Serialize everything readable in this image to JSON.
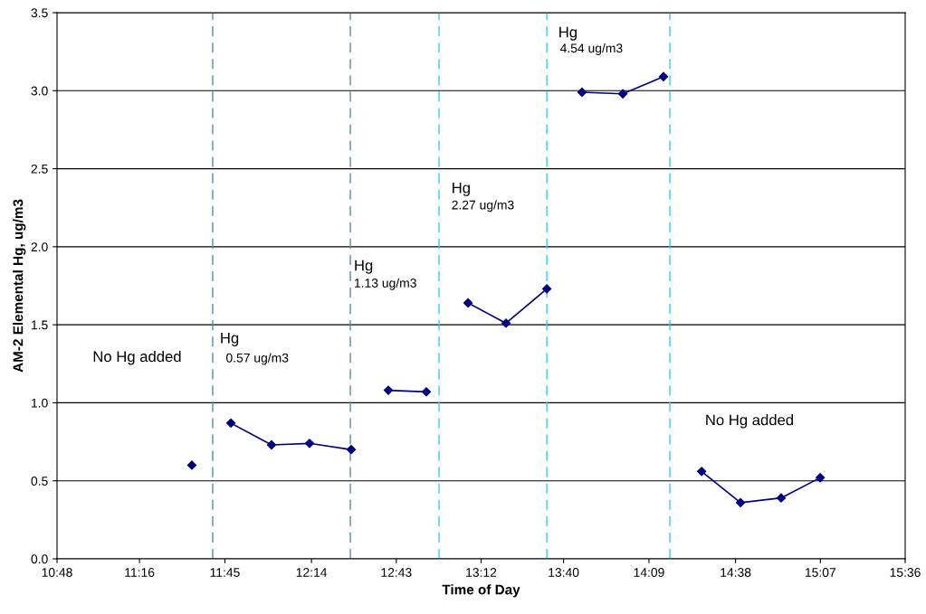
{
  "chart_data": {
    "type": "line",
    "xlabel": "Time of Day",
    "ylabel": "AM-2 Elemental Hg, ug/m3",
    "series": [
      {
        "color": "#00007f",
        "x": [
          11.563
        ],
        "values": [
          0.6
        ]
      },
      {
        "color": "#00007f",
        "x": [
          11.784,
          12.014,
          12.229,
          12.465
        ],
        "values": [
          0.87,
          0.73,
          0.74,
          0.7
        ]
      },
      {
        "color": "#00007f",
        "x": [
          12.675,
          12.89
        ],
        "values": [
          1.08,
          1.07
        ]
      },
      {
        "color": "#00007f",
        "x": [
          13.126,
          13.341,
          13.572
        ],
        "values": [
          1.64,
          1.51,
          1.73
        ]
      },
      {
        "color": "#00007f",
        "x": [
          13.771,
          14.002,
          14.232
        ],
        "values": [
          2.99,
          2.98,
          3.09
        ]
      },
      {
        "color": "#00007f",
        "x": [
          14.448,
          14.668,
          14.898,
          15.119
        ],
        "values": [
          0.56,
          0.36,
          0.39,
          0.52
        ]
      }
    ],
    "xlim": [
      10.8,
      15.6
    ],
    "xticks": [
      {
        "value": 10.8,
        "label": "10:48"
      },
      {
        "value": 11.2667,
        "label": "11:16"
      },
      {
        "value": 11.75,
        "label": "11:45"
      },
      {
        "value": 12.24,
        "label": "12:14"
      },
      {
        "value": 12.72,
        "label": "12:43"
      },
      {
        "value": 13.2,
        "label": "13:12"
      },
      {
        "value": 13.6667,
        "label": "13:40"
      },
      {
        "value": 14.15,
        "label": "14:09"
      },
      {
        "value": 14.64,
        "label": "14:38"
      },
      {
        "value": 15.12,
        "label": "15:07"
      },
      {
        "value": 15.6,
        "label": "15:36"
      }
    ],
    "ylim": [
      0,
      3.5
    ],
    "yticks": [
      {
        "value": 0,
        "label": "0.0"
      },
      {
        "value": 0.5,
        "label": "0.5"
      },
      {
        "value": 1,
        "label": "1.0"
      },
      {
        "value": 1.5,
        "label": "1.5"
      },
      {
        "value": 2,
        "label": "2.0"
      },
      {
        "value": 2.5,
        "label": "2.5"
      },
      {
        "value": 3,
        "label": "3.0"
      },
      {
        "value": 3.5,
        "label": "3.5"
      }
    ],
    "ref_lines": [
      {
        "axis": "x",
        "value": 11.681,
        "color": "#4f8fa8",
        "line_style": "dashed"
      },
      {
        "axis": "x",
        "value": 12.46,
        "color": "#4f8fa8",
        "line_style": "dashed"
      },
      {
        "axis": "x",
        "value": 12.962,
        "color": "#33ccff",
        "line_style": "dashed"
      },
      {
        "axis": "x",
        "value": 13.572,
        "color": "#33ccff",
        "line_style": "dashed"
      },
      {
        "axis": "x",
        "value": 14.268,
        "color": "#33ccff",
        "line_style": "dashed"
      }
    ],
    "annotations": [
      "No Hg added",
      "Hg",
      "0.57 ug/m3",
      "Hg",
      "1.13 ug/m3",
      "Hg",
      "2.27 ug/m3",
      "Hg",
      "4.54 ug/m3",
      "No Hg added"
    ],
    "grid": "y",
    "marker": "diamond",
    "line_style": "solid",
    "legend": false
  }
}
